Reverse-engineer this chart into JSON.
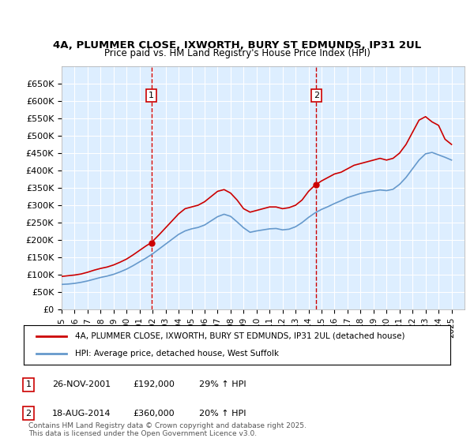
{
  "title_line1": "4A, PLUMMER CLOSE, IXWORTH, BURY ST EDMUNDS, IP31 2UL",
  "title_line2": "Price paid vs. HM Land Registry's House Price Index (HPI)",
  "ylabel": "",
  "ylim": [
    0,
    700000
  ],
  "yticks": [
    0,
    50000,
    100000,
    150000,
    200000,
    250000,
    300000,
    350000,
    400000,
    450000,
    500000,
    550000,
    600000,
    650000
  ],
  "ytick_labels": [
    "£0",
    "£50K",
    "£100K",
    "£150K",
    "£200K",
    "£250K",
    "£300K",
    "£350K",
    "£400K",
    "£450K",
    "£500K",
    "£550K",
    "£600K",
    "£650K"
  ],
  "xlim_start": 1995.0,
  "xlim_end": 2026.0,
  "purchase1_x": 2001.9,
  "purchase1_y": 192000,
  "purchase2_x": 2014.6,
  "purchase2_y": 360000,
  "vline1_x": 2001.9,
  "vline2_x": 2014.6,
  "red_color": "#cc0000",
  "blue_color": "#6699cc",
  "vline_color": "#cc0000",
  "background_color": "#ddeeff",
  "plot_bg_color": "#ddeeff",
  "legend_line1": "4A, PLUMMER CLOSE, IXWORTH, BURY ST EDMUNDS, IP31 2UL (detached house)",
  "legend_line2": "HPI: Average price, detached house, West Suffolk",
  "marker1_label": "26-NOV-2001",
  "marker1_price": "£192,000",
  "marker1_hpi": "29% ↑ HPI",
  "marker2_label": "18-AUG-2014",
  "marker2_price": "£360,000",
  "marker2_hpi": "20% ↑ HPI",
  "footer": "Contains HM Land Registry data © Crown copyright and database right 2025.\nThis data is licensed under the Open Government Licence v3.0.",
  "red_x": [
    1995.0,
    1995.5,
    1996.0,
    1996.5,
    1997.0,
    1997.5,
    1998.0,
    1998.5,
    1999.0,
    1999.5,
    2000.0,
    2000.5,
    2001.0,
    2001.5,
    2001.9,
    2002.0,
    2002.5,
    2003.0,
    2003.5,
    2004.0,
    2004.5,
    2005.0,
    2005.5,
    2006.0,
    2006.5,
    2007.0,
    2007.5,
    2008.0,
    2008.5,
    2009.0,
    2009.5,
    2010.0,
    2010.5,
    2011.0,
    2011.5,
    2012.0,
    2012.5,
    2013.0,
    2013.5,
    2014.0,
    2014.5,
    2014.6,
    2015.0,
    2015.5,
    2016.0,
    2016.5,
    2017.0,
    2017.5,
    2018.0,
    2018.5,
    2019.0,
    2019.5,
    2020.0,
    2020.5,
    2021.0,
    2021.5,
    2022.0,
    2022.5,
    2023.0,
    2023.5,
    2024.0,
    2024.5,
    2025.0
  ],
  "red_y": [
    95000,
    97000,
    99000,
    102000,
    107000,
    113000,
    118000,
    122000,
    128000,
    136000,
    145000,
    157000,
    170000,
    183000,
    192000,
    196000,
    215000,
    235000,
    255000,
    275000,
    290000,
    295000,
    300000,
    310000,
    325000,
    340000,
    345000,
    335000,
    315000,
    290000,
    280000,
    285000,
    290000,
    295000,
    295000,
    290000,
    293000,
    300000,
    315000,
    340000,
    358000,
    360000,
    370000,
    380000,
    390000,
    395000,
    405000,
    415000,
    420000,
    425000,
    430000,
    435000,
    430000,
    435000,
    450000,
    475000,
    510000,
    545000,
    555000,
    540000,
    530000,
    490000,
    475000
  ],
  "blue_x": [
    1995.0,
    1995.5,
    1996.0,
    1996.5,
    1997.0,
    1997.5,
    1998.0,
    1998.5,
    1999.0,
    1999.5,
    2000.0,
    2000.5,
    2001.0,
    2001.5,
    2002.0,
    2002.5,
    2003.0,
    2003.5,
    2004.0,
    2004.5,
    2005.0,
    2005.5,
    2006.0,
    2006.5,
    2007.0,
    2007.5,
    2008.0,
    2008.5,
    2009.0,
    2009.5,
    2010.0,
    2010.5,
    2011.0,
    2011.5,
    2012.0,
    2012.5,
    2013.0,
    2013.5,
    2014.0,
    2014.5,
    2015.0,
    2015.5,
    2016.0,
    2016.5,
    2017.0,
    2017.5,
    2018.0,
    2018.5,
    2019.0,
    2019.5,
    2020.0,
    2020.5,
    2021.0,
    2021.5,
    2022.0,
    2022.5,
    2023.0,
    2023.5,
    2024.0,
    2024.5,
    2025.0
  ],
  "blue_y": [
    72000,
    73000,
    75000,
    78000,
    82000,
    87000,
    92000,
    96000,
    101000,
    108000,
    116000,
    126000,
    137000,
    148000,
    160000,
    174000,
    188000,
    202000,
    216000,
    226000,
    232000,
    236000,
    243000,
    255000,
    267000,
    274000,
    268000,
    252000,
    235000,
    222000,
    226000,
    229000,
    232000,
    233000,
    229000,
    231000,
    238000,
    250000,
    265000,
    278000,
    288000,
    296000,
    305000,
    313000,
    322000,
    328000,
    334000,
    338000,
    341000,
    344000,
    342000,
    346000,
    360000,
    380000,
    405000,
    430000,
    448000,
    452000,
    445000,
    438000,
    430000
  ]
}
